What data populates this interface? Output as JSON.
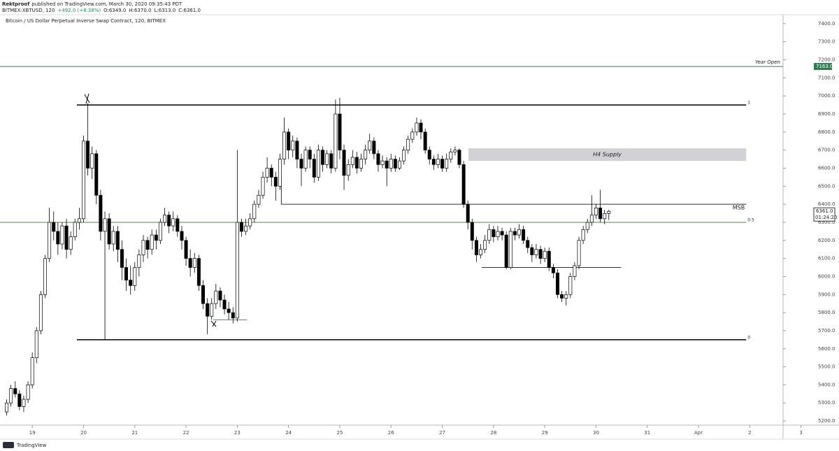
{
  "header": {
    "author": "Rektproof",
    "published": "published on TradingView.com, March 30, 2020 09:35:43 PDT",
    "symbol": "BITMEX:XBTUSD, 120",
    "change": "+492.0 (+8.38%)",
    "ohlc": [
      "O:6349.0",
      "H:6370.0",
      "L:6313.0",
      "C:6361.0"
    ]
  },
  "footer": {
    "brand": "TradingView"
  },
  "chart_data": {
    "type": "candlestick",
    "title": "Bitcoin / US Dollar Perpetual Inverse Swap Contract, 120, BITMEX",
    "up_color": "#ffffff",
    "down_color": "#000000",
    "wick_color": "#000000",
    "xlim": [
      18.37,
      33.65
    ],
    "ylim": [
      5177,
      7446
    ],
    "xticks": [
      19,
      20,
      21,
      22,
      23,
      24,
      25,
      26,
      27,
      28,
      29,
      30,
      31,
      {
        "value": 32,
        "label": "Apr"
      },
      {
        "value": 33,
        "label": "2"
      },
      {
        "value": 34,
        "label": "3"
      }
    ],
    "yticks": [
      {
        "value": 5200,
        "label": "5200.0"
      },
      {
        "value": 5300,
        "label": "5300.0"
      },
      {
        "value": 5400,
        "label": "5400.0"
      },
      {
        "value": 5500,
        "label": "5500.0"
      },
      {
        "value": 5600,
        "label": "5600.0"
      },
      {
        "value": 5700,
        "label": "5700.0"
      },
      {
        "value": 5800,
        "label": "5800.0"
      },
      {
        "value": 5900,
        "label": "5900.0"
      },
      {
        "value": 6000,
        "label": "6000.0"
      },
      {
        "value": 6100,
        "label": "6100.0"
      },
      {
        "value": 6200,
        "label": "6200.0"
      },
      {
        "value": 6300,
        "label": "6300.0"
      },
      {
        "value": 6400,
        "label": "6400.0"
      },
      {
        "value": 6500,
        "label": "6500.0"
      },
      {
        "value": 6600,
        "label": "6600.0"
      },
      {
        "value": 6700,
        "label": "6700.0"
      },
      {
        "value": 6800,
        "label": "6800.0"
      },
      {
        "value": 6900,
        "label": "6900.0"
      },
      {
        "value": 7000,
        "label": "7000.0"
      },
      {
        "value": 7100,
        "label": "7100.0"
      },
      {
        "value": 7200,
        "label": "7200.0"
      },
      {
        "value": 7300,
        "label": "7300.0"
      },
      {
        "value": 7400,
        "label": "7400.0"
      }
    ],
    "x": [
      18.5,
      18.583,
      18.667,
      18.75,
      18.833,
      18.917,
      19,
      19.083,
      19.167,
      19.25,
      19.333,
      19.417,
      19.5,
      19.583,
      19.667,
      19.75,
      19.833,
      19.917,
      20,
      20.083,
      20.167,
      20.25,
      20.333,
      20.417,
      20.5,
      20.583,
      20.667,
      20.75,
      20.833,
      20.917,
      21,
      21.083,
      21.167,
      21.25,
      21.333,
      21.417,
      21.5,
      21.583,
      21.667,
      21.75,
      21.833,
      21.917,
      22,
      22.083,
      22.167,
      22.25,
      22.333,
      22.417,
      22.5,
      22.583,
      22.667,
      22.75,
      22.833,
      22.917,
      23,
      23.083,
      23.167,
      23.25,
      23.333,
      23.417,
      23.5,
      23.583,
      23.667,
      23.75,
      23.833,
      23.917,
      24,
      24.083,
      24.167,
      24.25,
      24.333,
      24.417,
      24.5,
      24.583,
      24.667,
      24.75,
      24.833,
      24.917,
      25,
      25.083,
      25.167,
      25.25,
      25.333,
      25.417,
      25.5,
      25.583,
      25.667,
      25.75,
      25.833,
      25.917,
      26,
      26.083,
      26.167,
      26.25,
      26.333,
      26.417,
      26.5,
      26.583,
      26.667,
      26.75,
      26.833,
      26.917,
      27,
      27.083,
      27.167,
      27.25,
      27.333,
      27.417,
      27.5,
      27.583,
      27.667,
      27.75,
      27.833,
      27.917,
      28,
      28.083,
      28.167,
      28.25,
      28.333,
      28.417,
      28.5,
      28.583,
      28.667,
      28.75,
      28.833,
      28.917,
      29,
      29.083,
      29.167,
      29.25,
      29.333,
      29.417,
      29.5,
      29.583,
      29.667,
      29.75,
      29.833,
      29.917,
      30,
      30.083,
      30.167,
      30.25
    ],
    "ohlc": [
      [
        5250,
        5320,
        5230,
        5300
      ],
      [
        5300,
        5400,
        5280,
        5380
      ],
      [
        5380,
        5420,
        5330,
        5350
      ],
      [
        5350,
        5370,
        5260,
        5280
      ],
      [
        5280,
        5340,
        5250,
        5320
      ],
      [
        5320,
        5420,
        5300,
        5400
      ],
      [
        5400,
        5580,
        5380,
        5550
      ],
      [
        5550,
        5720,
        5520,
        5700
      ],
      [
        5700,
        5920,
        5680,
        5900
      ],
      [
        5900,
        6120,
        5880,
        6100
      ],
      [
        6100,
        6380,
        6080,
        6300
      ],
      [
        6300,
        6360,
        6200,
        6250
      ],
      [
        6250,
        6300,
        6120,
        6180
      ],
      [
        6180,
        6300,
        6150,
        6280
      ],
      [
        6280,
        6320,
        6100,
        6150
      ],
      [
        6150,
        6250,
        6120,
        6220
      ],
      [
        6220,
        6320,
        6200,
        6300
      ],
      [
        6300,
        6380,
        6260,
        6320
      ],
      [
        6320,
        6780,
        6300,
        6750
      ],
      [
        6750,
        6960,
        6560,
        6600
      ],
      [
        6600,
        6720,
        6540,
        6680
      ],
      [
        6680,
        6700,
        6400,
        6450
      ],
      [
        6450,
        6480,
        6200,
        6250
      ],
      [
        6250,
        6360,
        5650,
        6320
      ],
      [
        6320,
        6350,
        6150,
        6180
      ],
      [
        6180,
        6280,
        6140,
        6250
      ],
      [
        6250,
        6280,
        6080,
        6150
      ],
      [
        6150,
        6200,
        5980,
        6050
      ],
      [
        6050,
        6100,
        5920,
        5980
      ],
      [
        5980,
        6060,
        5900,
        5950
      ],
      [
        5950,
        6080,
        5920,
        6050
      ],
      [
        6050,
        6150,
        6000,
        6120
      ],
      [
        6120,
        6230,
        6080,
        6200
      ],
      [
        6200,
        6220,
        6100,
        6150
      ],
      [
        6150,
        6260,
        6120,
        6230
      ],
      [
        6230,
        6260,
        6150,
        6200
      ],
      [
        6200,
        6320,
        6180,
        6300
      ],
      [
        6300,
        6380,
        6280,
        6340
      ],
      [
        6340,
        6360,
        6240,
        6280
      ],
      [
        6280,
        6360,
        6250,
        6320
      ],
      [
        6320,
        6340,
        6220,
        6250
      ],
      [
        6250,
        6280,
        6150,
        6200
      ],
      [
        6200,
        6220,
        6060,
        6100
      ],
      [
        6100,
        6150,
        6000,
        6050
      ],
      [
        6050,
        6130,
        6020,
        6100
      ],
      [
        6100,
        6120,
        5920,
        5950
      ],
      [
        5950,
        5980,
        5820,
        5850
      ],
      [
        5850,
        5880,
        5680,
        5780
      ],
      [
        5780,
        5880,
        5760,
        5850
      ],
      [
        5850,
        5960,
        5820,
        5920
      ],
      [
        5920,
        5940,
        5830,
        5870
      ],
      [
        5870,
        5900,
        5790,
        5820
      ],
      [
        5820,
        5860,
        5760,
        5800
      ],
      [
        5800,
        5830,
        5740,
        5770
      ],
      [
        5770,
        6700,
        5750,
        6300
      ],
      [
        6300,
        6320,
        6220,
        6250
      ],
      [
        6250,
        6320,
        6230,
        6280
      ],
      [
        6280,
        6350,
        6260,
        6320
      ],
      [
        6320,
        6420,
        6300,
        6400
      ],
      [
        6400,
        6480,
        6380,
        6450
      ],
      [
        6450,
        6580,
        6430,
        6550
      ],
      [
        6550,
        6660,
        6520,
        6600
      ],
      [
        6600,
        6620,
        6500,
        6550
      ],
      [
        6550,
        6580,
        6420,
        6500
      ],
      [
        6500,
        6680,
        6480,
        6650
      ],
      [
        6650,
        6880,
        6620,
        6800
      ],
      [
        6800,
        6820,
        6650,
        6700
      ],
      [
        6700,
        6780,
        6660,
        6750
      ],
      [
        6750,
        6770,
        6600,
        6650
      ],
      [
        6650,
        6680,
        6500,
        6600
      ],
      [
        6600,
        6720,
        6580,
        6700
      ],
      [
        6700,
        6720,
        6600,
        6650
      ],
      [
        6650,
        6680,
        6520,
        6550
      ],
      [
        6550,
        6730,
        6530,
        6700
      ],
      [
        6700,
        6720,
        6580,
        6620
      ],
      [
        6620,
        6700,
        6600,
        6680
      ],
      [
        6680,
        6700,
        6570,
        6600
      ],
      [
        6600,
        6980,
        6580,
        6900
      ],
      [
        6900,
        6990,
        6650,
        6700
      ],
      [
        6700,
        6730,
        6480,
        6560
      ],
      [
        6560,
        6650,
        6530,
        6620
      ],
      [
        6620,
        6700,
        6600,
        6660
      ],
      [
        6660,
        6690,
        6570,
        6600
      ],
      [
        6600,
        6680,
        6580,
        6650
      ],
      [
        6650,
        6730,
        6620,
        6700
      ],
      [
        6700,
        6790,
        6680,
        6750
      ],
      [
        6750,
        6770,
        6650,
        6680
      ],
      [
        6680,
        6700,
        6580,
        6620
      ],
      [
        6620,
        6670,
        6600,
        6640
      ],
      [
        6640,
        6660,
        6500,
        6600
      ],
      [
        6600,
        6680,
        6580,
        6650
      ],
      [
        6650,
        6670,
        6580,
        6600
      ],
      [
        6600,
        6660,
        6590,
        6640
      ],
      [
        6640,
        6720,
        6620,
        6700
      ],
      [
        6700,
        6780,
        6680,
        6760
      ],
      [
        6760,
        6820,
        6740,
        6800
      ],
      [
        6800,
        6880,
        6780,
        6850
      ],
      [
        6850,
        6870,
        6760,
        6800
      ],
      [
        6800,
        6820,
        6680,
        6700
      ],
      [
        6700,
        6720,
        6620,
        6650
      ],
      [
        6650,
        6670,
        6590,
        6620
      ],
      [
        6620,
        6680,
        6600,
        6650
      ],
      [
        6650,
        6670,
        6580,
        6600
      ],
      [
        6600,
        6680,
        6580,
        6650
      ],
      [
        6650,
        6710,
        6630,
        6690
      ],
      [
        6690,
        6720,
        6670,
        6700
      ],
      [
        6700,
        6710,
        6600,
        6620
      ],
      [
        6620,
        6640,
        6380,
        6400
      ],
      [
        6400,
        6420,
        6260,
        6300
      ],
      [
        6300,
        6320,
        6150,
        6200
      ],
      [
        6200,
        6220,
        6080,
        6120
      ],
      [
        6120,
        6180,
        6100,
        6150
      ],
      [
        6150,
        6230,
        6130,
        6200
      ],
      [
        6200,
        6290,
        6180,
        6260
      ],
      [
        6260,
        6280,
        6190,
        6220
      ],
      [
        6220,
        6280,
        6200,
        6250
      ],
      [
        6250,
        6270,
        6200,
        6230
      ],
      [
        6230,
        6250,
        6040,
        6050
      ],
      [
        6050,
        6270,
        6040,
        6250
      ],
      [
        6250,
        6270,
        6200,
        6230
      ],
      [
        6230,
        6290,
        6210,
        6260
      ],
      [
        6260,
        6280,
        6180,
        6200
      ],
      [
        6200,
        6220,
        6130,
        6160
      ],
      [
        6160,
        6180,
        6080,
        6120
      ],
      [
        6120,
        6180,
        6100,
        6150
      ],
      [
        6150,
        6170,
        6070,
        6100
      ],
      [
        6100,
        6160,
        6080,
        6140
      ],
      [
        6140,
        6160,
        6030,
        6050
      ],
      [
        6050,
        6070,
        5990,
        6020
      ],
      [
        6020,
        6040,
        5880,
        5900
      ],
      [
        5900,
        5920,
        5860,
        5880
      ],
      [
        5880,
        5920,
        5840,
        5900
      ],
      [
        5900,
        6020,
        5880,
        6000
      ],
      [
        6000,
        6080,
        5980,
        6060
      ],
      [
        6060,
        6220,
        6040,
        6200
      ],
      [
        6200,
        6280,
        6180,
        6260
      ],
      [
        6260,
        6320,
        6240,
        6300
      ],
      [
        6300,
        6450,
        6280,
        6340
      ],
      [
        6340,
        6400,
        6320,
        6380
      ],
      [
        6380,
        6480,
        6300,
        6320
      ],
      [
        6320,
        6370,
        6290,
        6349
      ],
      [
        6349,
        6370,
        6313,
        6361
      ]
    ],
    "year_open": {
      "name": "Year Open",
      "value": 7163,
      "label": "7163.0",
      "color": "#2e7d52"
    },
    "last_price": {
      "value": 6361,
      "label": "6361.0",
      "countdown": "01:24:20"
    },
    "fib": {
      "x": [
        19.87,
        32.93
      ],
      "levels": [
        {
          "value": 6950,
          "label": "1",
          "color": "#000000"
        },
        {
          "value": 6300,
          "label": "0.5",
          "color": "#5a8a4a"
        },
        {
          "value": 5650,
          "label": "0",
          "color": "#000000"
        }
      ]
    },
    "supply": {
      "label": "H4 Supply",
      "x": [
        27.51,
        32.93
      ],
      "range": [
        6640,
        6710
      ],
      "color": "#d1d1d6"
    },
    "msb": {
      "label": "MSB",
      "value": 6400,
      "from": 6550,
      "x": [
        23.86,
        32.93
      ]
    },
    "ranges": [
      {
        "value": 6050,
        "x": [
          27.77,
          30.49
        ],
        "color": "#333333"
      },
      {
        "value": 5760,
        "x": [
          22.53,
          23.19
        ],
        "color": "#4a7fb0"
      }
    ]
  }
}
